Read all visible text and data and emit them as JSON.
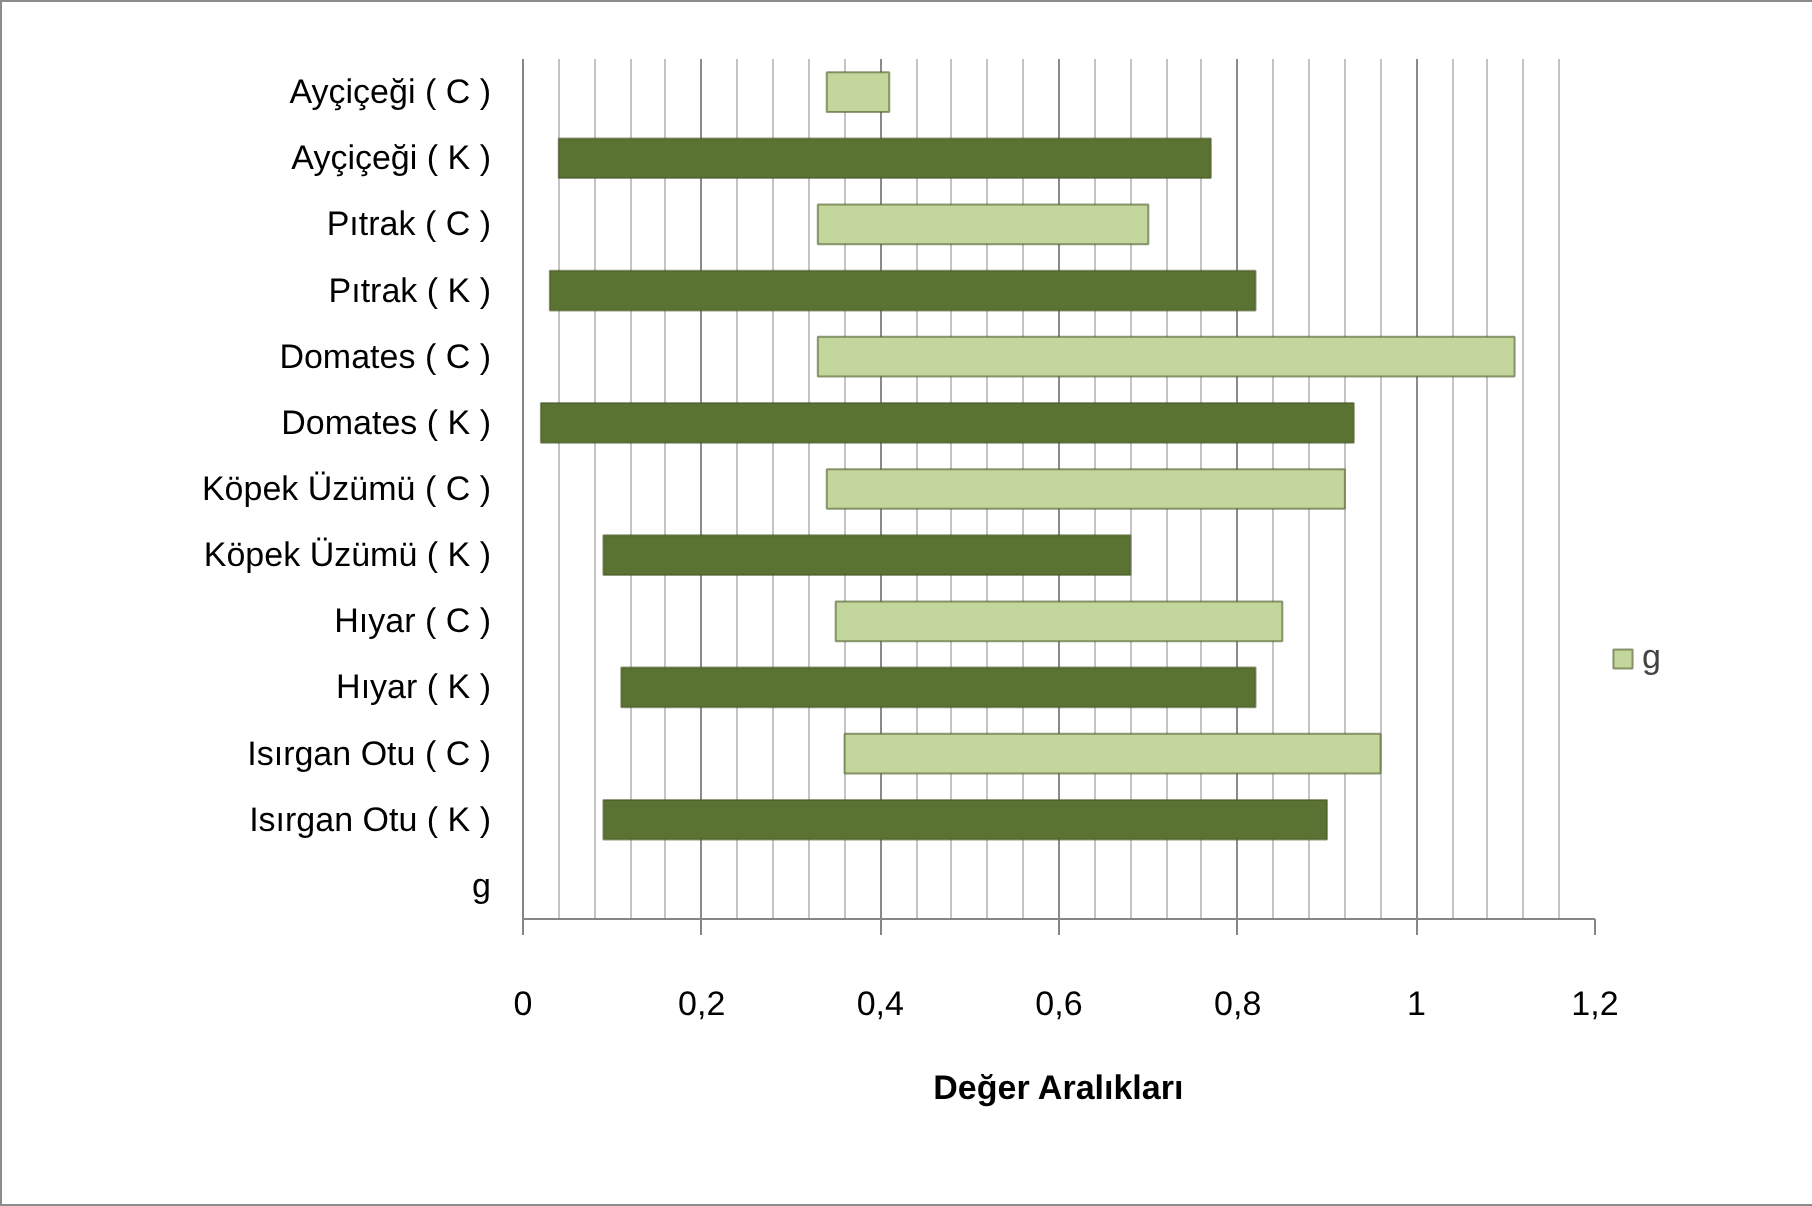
{
  "chart_data": {
    "type": "bar",
    "orientation": "horizontal",
    "xlabel": "Değer Aralıkları",
    "categories": [
      "Ayçiçeği ( C )",
      "Ayçiçeği ( K )",
      "Pıtrak ( C )",
      "Pıtrak ( K )",
      "Domates ( C )",
      "Domates ( K )",
      "Köpek Üzümü ( C )",
      "Köpek Üzümü ( K )",
      "Hıyar ( C )",
      "Hıyar ( K )",
      "Isırgan Otu ( C )",
      "Isırgan Otu ( K )",
      "g"
    ],
    "series": [
      {
        "name": "g",
        "color": "#c3d69b",
        "colors": [
          null,
          "#5a7232",
          null,
          "#5a7232",
          null,
          "#5a7232",
          null,
          "#5a7232",
          null,
          "#5a7232",
          null,
          "#5a7232",
          null
        ],
        "base": [
          0.34,
          0.04,
          0.33,
          0.03,
          0.33,
          0.02,
          0.34,
          0.09,
          0.35,
          0.11,
          0.36,
          0.09,
          null
        ],
        "values": [
          0.07,
          0.73,
          0.37,
          0.79,
          0.78,
          0.91,
          0.58,
          0.59,
          0.5,
          0.71,
          0.6,
          0.81,
          null
        ]
      }
    ],
    "xlim": [
      0,
      1.2
    ],
    "xticks": [
      0,
      {
        "value": 0.04,
        "label": null
      },
      {
        "value": 0.08,
        "label": null
      },
      {
        "value": 0.12,
        "label": null
      },
      {
        "value": 0.16,
        "label": null
      },
      {
        "value": 0.2,
        "label": "0,2"
      },
      {
        "value": 0.24,
        "label": null
      },
      {
        "value": 0.28,
        "label": null
      },
      {
        "value": 0.32,
        "label": null
      },
      {
        "value": 0.36,
        "label": null
      },
      {
        "value": 0.4,
        "label": "0,4"
      },
      {
        "value": 0.44,
        "label": null
      },
      {
        "value": 0.48,
        "label": null
      },
      {
        "value": 0.52,
        "label": null
      },
      {
        "value": 0.56,
        "label": null
      },
      {
        "value": 0.6,
        "label": "0,6"
      },
      {
        "value": 0.64,
        "label": null
      },
      {
        "value": 0.68,
        "label": null
      },
      {
        "value": 0.72,
        "label": null
      },
      {
        "value": 0.76,
        "label": null
      },
      {
        "value": 0.8,
        "label": "0,8"
      },
      {
        "value": 0.84,
        "label": null
      },
      {
        "value": 0.88,
        "label": null
      },
      {
        "value": 0.92,
        "label": null
      },
      {
        "value": 0.96,
        "label": null
      },
      1,
      {
        "value": 1.04,
        "label": null
      },
      {
        "value": 1.08,
        "label": null
      },
      {
        "value": 1.12,
        "label": null
      },
      {
        "value": 1.16,
        "label": null
      },
      {
        "value": 1.2,
        "label": "1,2"
      }
    ],
    "grid": "x",
    "legend": "right"
  }
}
